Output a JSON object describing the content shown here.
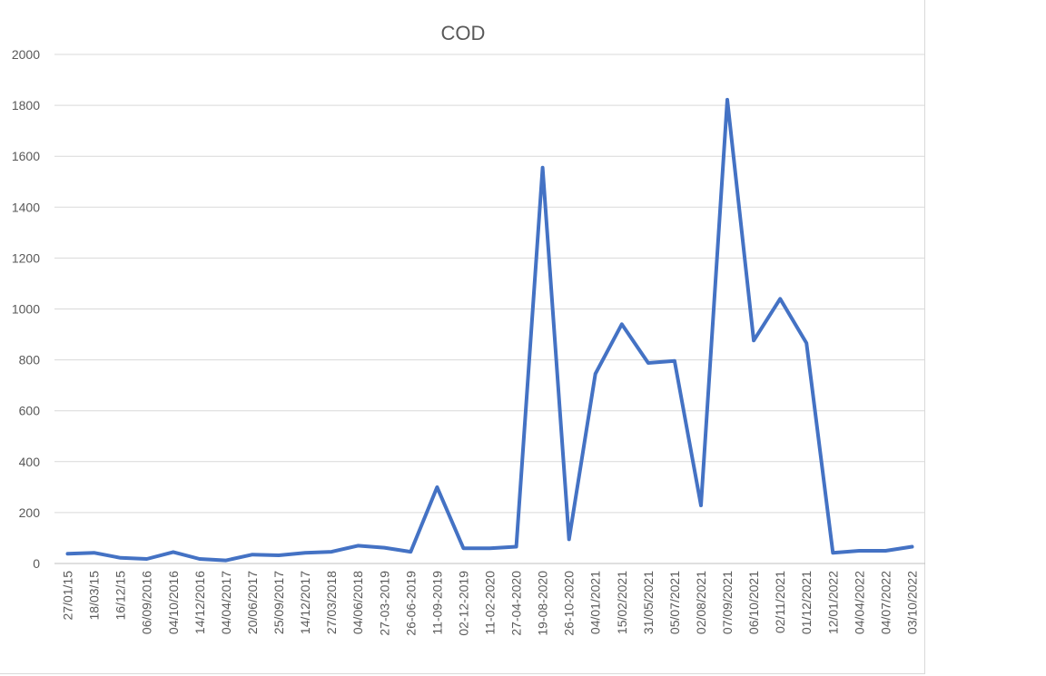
{
  "chart_data": {
    "type": "line",
    "title": "COD",
    "xlabel": "",
    "ylabel": "",
    "ylim": [
      0,
      2000
    ],
    "yticks": [
      0,
      200,
      400,
      600,
      800,
      1000,
      1200,
      1400,
      1600,
      1800,
      2000
    ],
    "grid": true,
    "legend": "none",
    "categories": [
      "27/01/15",
      "18/03/15",
      "16/12/15",
      "06/09/2016",
      "04/10/2016",
      "14/12/2016",
      "04/04/2017",
      "20/06/2017",
      "25/09/2017",
      "14/12/2017",
      "27/03/2018",
      "04/06/2018",
      "27-03-2019",
      "26-06-2019",
      "11-09-2019",
      "02-12-2019",
      "11-02-2020",
      "27-04-2020",
      "19-08-2020",
      "26-10-2020",
      "04/01/2021",
      "15/02/2021",
      "31/05/2021",
      "05/07/2021",
      "02/08/2021",
      "07/09/2021",
      "06/10/2021",
      "02/11/2021",
      "01/12/2021",
      "12/01/2022",
      "04/04/2022",
      "04/07/2022",
      "03/10/2022"
    ],
    "series": [
      {
        "color": "#4472c4",
        "values": [
          38,
          42,
          22,
          18,
          45,
          18,
          12,
          35,
          32,
          42,
          46,
          70,
          62,
          46,
          300,
          60,
          60,
          66,
          1555,
          95,
          745,
          940,
          788,
          796,
          228,
          1822,
          876,
          1040,
          866,
          42,
          50,
          50,
          66
        ]
      }
    ]
  }
}
